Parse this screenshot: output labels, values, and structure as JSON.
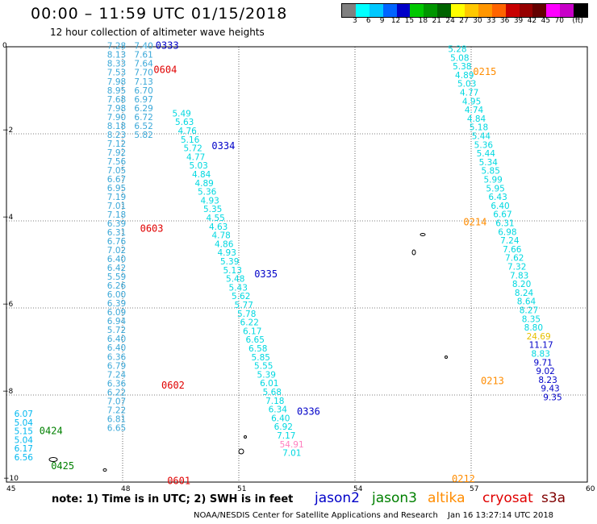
{
  "title": "00:00 – 11:59 UTC 01/15/2018",
  "subtitle": "12 hour collection of altimeter wave heights",
  "colorbar": {
    "colors": [
      "#808080",
      "#00ffff",
      "#00c8ff",
      "#0064ff",
      "#0000c8",
      "#00c800",
      "#009600",
      "#006400",
      "#ffff00",
      "#ffc800",
      "#ff9600",
      "#ff6400",
      "#c80000",
      "#960000",
      "#640000",
      "#ff00ff",
      "#c800c8",
      "#000000"
    ],
    "ticks": [
      "3",
      "6",
      "9",
      "12",
      "15",
      "18",
      "21",
      "24",
      "27",
      "30",
      "33",
      "36",
      "39",
      "42",
      "45",
      "70",
      "(ft)"
    ]
  },
  "axes": {
    "x_ticks": [
      "45",
      "48",
      "51",
      "54",
      "57",
      "60"
    ],
    "y_ticks": [
      "0",
      "−2",
      "−4",
      "−6",
      "−8",
      "−10"
    ]
  },
  "passes": [
    {
      "label": "0333",
      "sat": "jason2",
      "color": "#0000c8",
      "lon": 48.85,
      "lat": -0.05
    },
    {
      "label": "0334",
      "sat": "jason2",
      "color": "#0000c8",
      "lon": 50.3,
      "lat": -2.35
    },
    {
      "label": "0335",
      "sat": "jason2",
      "color": "#0000c8",
      "lon": 51.4,
      "lat": -5.3
    },
    {
      "label": "0336",
      "sat": "jason2",
      "color": "#0000c8",
      "lon": 52.5,
      "lat": -8.45
    },
    {
      "label": "0604",
      "sat": "cryosat",
      "color": "#e00000",
      "lon": 48.8,
      "lat": -0.6
    },
    {
      "label": "0603",
      "sat": "cryosat",
      "color": "#e00000",
      "lon": 48.45,
      "lat": -4.25
    },
    {
      "label": "0602",
      "sat": "cryosat",
      "color": "#e00000",
      "lon": 49.0,
      "lat": -7.85
    },
    {
      "label": "0601",
      "sat": "cryosat",
      "color": "#e00000",
      "lon": 49.15,
      "lat": -10.05
    },
    {
      "label": "0215",
      "sat": "altika",
      "color": "#ff8c00",
      "lon": 57.05,
      "lat": -0.65
    },
    {
      "label": "0214",
      "sat": "altika",
      "color": "#ff8c00",
      "lon": 56.8,
      "lat": -4.1
    },
    {
      "label": "0213",
      "sat": "altika",
      "color": "#ff8c00",
      "lon": 57.25,
      "lat": -7.75
    },
    {
      "label": "0212",
      "sat": "altika",
      "color": "#ff8c00",
      "lon": 56.5,
      "lat": -10.0
    },
    {
      "label": "0424",
      "sat": "jason3",
      "color": "#008000",
      "lon": 45.85,
      "lat": -8.9
    },
    {
      "label": "0425",
      "sat": "jason3",
      "color": "#008000",
      "lon": 46.15,
      "lat": -9.7
    }
  ],
  "tracks": [
    {
      "name": "cryosat-west",
      "color": "#3aa8d8",
      "start": [
        47.6,
        -0.05
      ],
      "step": [
        0.0,
        -0.204
      ],
      "values": [
        "7.28",
        "8.13",
        "8.33",
        "7.53",
        "7.98",
        "8.95",
        "7.68",
        "7.98",
        "7.90",
        "8.18",
        "8.23",
        "7.12",
        "7.92",
        "7.56",
        "7.05",
        "6.67",
        "6.95",
        "7.19",
        "7.01",
        "7.18",
        "6.39",
        "6.31",
        "6.76",
        "7.02",
        "6.40",
        "6.42",
        "5.59",
        "6.26",
        "6.00",
        "6.39",
        "6.09",
        "6.94",
        "5.72",
        "6.40",
        "6.40",
        "6.36",
        "6.79",
        "7.24",
        "6.36",
        "6.22",
        "7.07",
        "7.22",
        "6.81",
        "6.65"
      ]
    },
    {
      "name": "cryosat-east",
      "color": "#3aa8d8",
      "start": [
        48.3,
        -0.05
      ],
      "step": [
        0.0,
        -0.204
      ],
      "values": [
        "7.40",
        "7.61",
        "7.64",
        "7.70",
        "7.13",
        "6.70",
        "6.97",
        "6.29",
        "6.72",
        "6.52",
        "5.82"
      ]
    },
    {
      "name": "jason2",
      "color": "#00d8e0",
      "start": [
        49.28,
        -1.6
      ],
      "step": [
        0.073,
        -0.2
      ],
      "values": [
        "5.49",
        "5.63",
        "4.76",
        "5.16",
        "5.72",
        "4.77",
        "5.03",
        "4.84",
        "4.89",
        "5.36",
        "4.93",
        "5.35",
        "4.55",
        "4.63",
        "4.78",
        "4.86",
        "4.93",
        "5.39",
        "5.13",
        "5.48",
        "5.43",
        "5.62",
        "5.77",
        "5.78",
        "6.22",
        "6.17",
        "6.65",
        "6.58",
        "5.85",
        "5.55",
        "5.39",
        "6.01",
        "5.68",
        "7.18",
        "6.34",
        "6.40",
        "6.92",
        "7.17",
        "54.91",
        "7.01"
      ]
    },
    {
      "name": "altika",
      "color": "#00d8e0",
      "start": [
        56.4,
        -0.12
      ],
      "step": [
        0.0615,
        -0.2
      ],
      "values": [
        "5.28",
        "5.08",
        "5.38",
        "4.89",
        "5.03",
        "4.77",
        "4.95",
        "4.74",
        "4.84",
        "5.18",
        "5.44",
        "5.36",
        "5.44",
        "5.34",
        "5.85",
        "5.99",
        "5.95",
        "6.43",
        "6.40",
        "6.67",
        "6.31",
        "6.98",
        "7.24",
        "7.66",
        "7.62",
        "7.32",
        "7.83",
        "8.20",
        "8.24",
        "8.64",
        "8.27",
        "8.35",
        "8.80",
        "24.69",
        "11.17",
        "8.83",
        "9.71",
        "9.02",
        "8.23",
        "9.43",
        "9.35"
      ]
    },
    {
      "name": "jason3",
      "color": "#00b8f0",
      "start": [
        45.2,
        -8.5
      ],
      "step": [
        0.0,
        -0.2
      ],
      "values": [
        "6.07",
        "5.04",
        "5.15",
        "5.04",
        "6.17",
        "6.56"
      ]
    }
  ],
  "special_colors": {
    "24.69": "#e6c000",
    "54.91": "#ff7fbf",
    "11.17": "#0000c8",
    "9.71": "#0000c8",
    "9.02": "#0000c8",
    "8.23": "#0000c8",
    "9.43": "#0000c8",
    "9.35": "#0000c8"
  },
  "legend": [
    {
      "label": "jason2",
      "color": "#0000c8"
    },
    {
      "label": "jason3",
      "color": "#008000"
    },
    {
      "label": "altika",
      "color": "#ff8c00"
    },
    {
      "label": "cryosat",
      "color": "#e00000"
    },
    {
      "label": "s3a",
      "color": "#800000"
    }
  ],
  "note": "note:  1) Time is in UTC;  2) SWH is in feet",
  "footer_left": "NOAA/NESDIS Center for Satellite Applications and Research",
  "footer_right": "Jan 16 13:27:14 UTC 2018"
}
